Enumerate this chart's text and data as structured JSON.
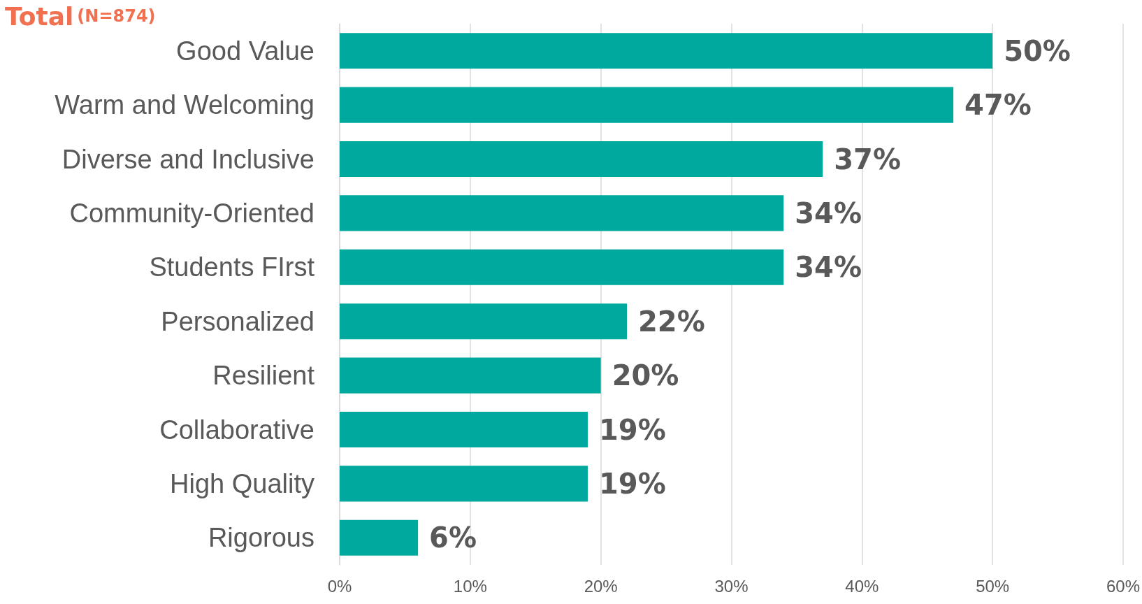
{
  "chart_data": {
    "type": "bar",
    "orientation": "horizontal",
    "title": "Total",
    "subtitle": "(N=874)",
    "categories": [
      "Good Value",
      "Warm and Welcoming",
      "Diverse and Inclusive",
      "Community-Oriented",
      "Students FIrst",
      "Personalized",
      "Resilient",
      "Collaborative",
      "High Quality",
      "Rigorous"
    ],
    "values": [
      50,
      47,
      37,
      34,
      34,
      22,
      20,
      19,
      19,
      6
    ],
    "value_labels": [
      "50%",
      "47%",
      "37%",
      "34%",
      "34%",
      "22%",
      "20%",
      "19%",
      "19%",
      "6%"
    ],
    "color": "#00a99d",
    "xlim": [
      0,
      60
    ],
    "xticks": [
      {
        "value": 0,
        "label": "0%"
      },
      {
        "value": 10,
        "label": "10%"
      },
      {
        "value": 20,
        "label": "20%"
      },
      {
        "value": 30,
        "label": "30%"
      },
      {
        "value": 40,
        "label": "40%"
      },
      {
        "value": 50,
        "label": "50%"
      },
      {
        "value": 60,
        "label": "60%"
      }
    ],
    "grid": "x"
  }
}
